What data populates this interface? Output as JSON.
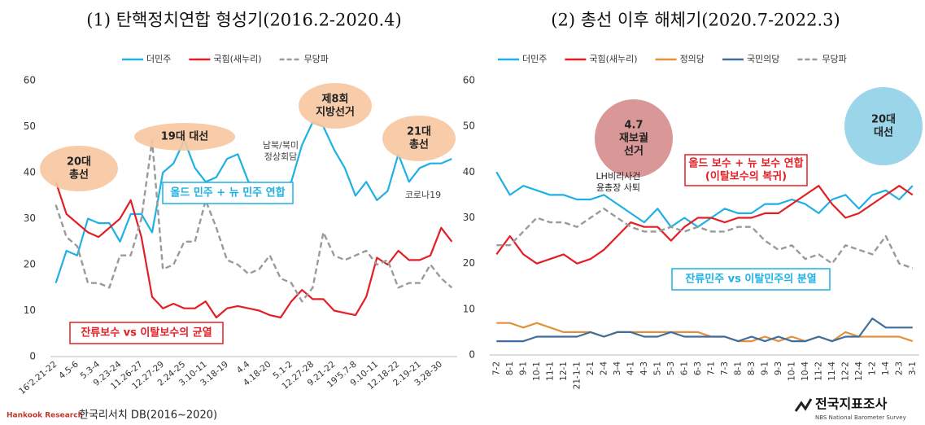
{
  "chart_data": [
    {
      "type": "line",
      "title": "(1) 탄핵정치연합 형성기(2016.2-2020.4)",
      "categories": [
        "16'2.21-22",
        null,
        "4.5-6",
        null,
        "5.3-4",
        null,
        "9.23-24",
        null,
        "11.26-27",
        null,
        "12.27-29",
        null,
        "2.24-25",
        null,
        "3.10-11",
        null,
        "3.18-19",
        null,
        "4.4",
        null,
        "4.18-20",
        null,
        "5.1-2",
        null,
        "12.27-28",
        null,
        "9.21-22",
        null,
        "19'5.7-8",
        null,
        "9.10-11",
        null,
        "12.18-22",
        null,
        "2.19-21",
        null,
        "3.28-30",
        null
      ],
      "series": [
        {
          "name": "더민주",
          "color": "#1fb1e3",
          "style": "solid",
          "values": [
            16,
            23,
            22,
            30,
            29,
            29,
            25,
            31,
            31,
            27,
            40,
            42,
            47,
            41,
            38,
            39,
            43,
            44,
            38,
            37,
            37,
            37,
            38,
            46,
            51,
            50,
            45,
            41,
            35,
            38,
            34,
            36,
            44,
            38,
            41,
            42,
            42,
            43
          ]
        },
        {
          "name": "국힘(새누리)",
          "color": "#e31e24",
          "style": "solid",
          "values": [
            38,
            31,
            29,
            27,
            26,
            28,
            30,
            34,
            26,
            13,
            10.5,
            11.5,
            10.5,
            10.5,
            12,
            8.5,
            10.5,
            11,
            10.5,
            10,
            9,
            8.5,
            12,
            14.5,
            12.5,
            12.5,
            10,
            9.5,
            9,
            13,
            21.5,
            20,
            23,
            21,
            21,
            22,
            28,
            25
          ]
        },
        {
          "name": "무당파",
          "color": "#9a9a9a",
          "style": "dashed",
          "values": [
            33,
            26,
            24,
            16,
            16,
            15,
            22,
            22,
            30,
            47,
            19,
            20,
            25,
            25,
            34,
            28,
            21,
            20,
            18,
            19,
            22,
            17,
            16,
            12,
            15,
            27,
            22,
            21,
            22,
            23,
            20,
            21,
            15,
            16,
            16,
            20,
            17,
            15
          ]
        }
      ],
      "ylim": [
        0,
        60
      ],
      "yticks": [
        0,
        10,
        20,
        30,
        40,
        50,
        60
      ],
      "grid": false,
      "annotations": [
        {
          "lines": [
            "20대",
            "총선"
          ]
        },
        {
          "lines": [
            "19대 대선"
          ]
        },
        {
          "lines": [
            "제8회",
            "지방선거"
          ]
        },
        {
          "lines": [
            "21대",
            "총선"
          ]
        },
        {
          "lines": [
            "남북/북미",
            "정상회담"
          ]
        },
        {
          "lines": [
            "코로나19"
          ]
        },
        {
          "lines": [
            "올드 민주 + 뉴 민주 연합"
          ]
        },
        {
          "lines": [
            "잔류보수 vs 이탈보수의 균열"
          ]
        }
      ],
      "logo": "Hankook Research",
      "source": "한국리서치 DB(2016~2020)"
    },
    {
      "type": "line",
      "title": "(2) 총선 이후 해체기(2020.7-2022.3)",
      "categories": [
        "7-2",
        "8-1",
        "9-1",
        "10-1",
        "11-1",
        "12-1",
        "21-1-1",
        "2-1",
        "2-4",
        "3-4",
        "4-1",
        "4-3",
        "5-1",
        "5-3",
        "6-1",
        "6-3",
        "7-1",
        "7-3",
        "8-1",
        "8-3",
        "9-1",
        "9-3",
        "10-1",
        "10-4",
        "11-2",
        "11-4",
        "12-2",
        "12-4",
        "1-2",
        "1-4",
        "2-3",
        "3-1"
      ],
      "series": [
        {
          "name": "더민주",
          "color": "#1fb1e3",
          "style": "solid",
          "values": [
            40,
            35,
            37,
            36,
            35,
            35,
            34,
            34,
            35,
            33,
            31,
            29,
            32,
            28,
            30,
            28,
            30,
            32,
            31,
            31,
            33,
            33,
            34,
            33,
            31,
            34,
            35,
            32,
            35,
            36,
            34,
            37
          ]
        },
        {
          "name": "국힘(새누리)",
          "color": "#e31e24",
          "style": "solid",
          "values": [
            22,
            26,
            22,
            20,
            21,
            22,
            20,
            21,
            23,
            26,
            29,
            28,
            28,
            25,
            28,
            30,
            30,
            29,
            30,
            30,
            31,
            31,
            33,
            35,
            37,
            33,
            30,
            31,
            33,
            35,
            37,
            35
          ]
        },
        {
          "name": "정의당",
          "color": "#e0913a",
          "style": "solid",
          "values": [
            7,
            7,
            6,
            7,
            6,
            5,
            5,
            5,
            4,
            5,
            5,
            5,
            5,
            5,
            5,
            5,
            4,
            4,
            3,
            3,
            4,
            3,
            4,
            3,
            4,
            3,
            5,
            4,
            4,
            4,
            4,
            3
          ]
        },
        {
          "name": "국민의당",
          "color": "#3f6e9e",
          "style": "solid",
          "values": [
            3,
            3,
            3,
            4,
            4,
            4,
            4,
            5,
            4,
            5,
            5,
            4,
            4,
            5,
            4,
            4,
            4,
            4,
            3,
            4,
            3,
            4,
            3,
            3,
            4,
            3,
            4,
            4,
            8,
            6,
            6,
            6
          ]
        },
        {
          "name": "무당파",
          "color": "#9a9a9a",
          "style": "dashed",
          "values": [
            24,
            24,
            27,
            30,
            29,
            29,
            28,
            30,
            32,
            30,
            28,
            27,
            27,
            28,
            27,
            28,
            27,
            27,
            28,
            28,
            25,
            23,
            24,
            21,
            22,
            20,
            24,
            23,
            22,
            26,
            20,
            19
          ]
        }
      ],
      "ylim": [
        0,
        60
      ],
      "yticks": [
        0,
        10,
        20,
        30,
        40,
        50,
        60
      ],
      "grid": false,
      "annotations": [
        {
          "lines": [
            "4.7",
            "재보궐",
            "선거"
          ]
        },
        {
          "lines": [
            "20대",
            "대선"
          ]
        },
        {
          "lines": [
            "LH비리사건",
            "윤총장 사퇴"
          ]
        },
        {
          "lines": [
            "올드 보수 + 뉴 보수 연합",
            "(이탈보수의 복귀)"
          ]
        },
        {
          "lines": [
            "잔류민주 vs 이탈민주의 분열"
          ]
        }
      ],
      "logo": "전국지표조사",
      "logo_sub": "NBS National Barometer Survey"
    }
  ]
}
